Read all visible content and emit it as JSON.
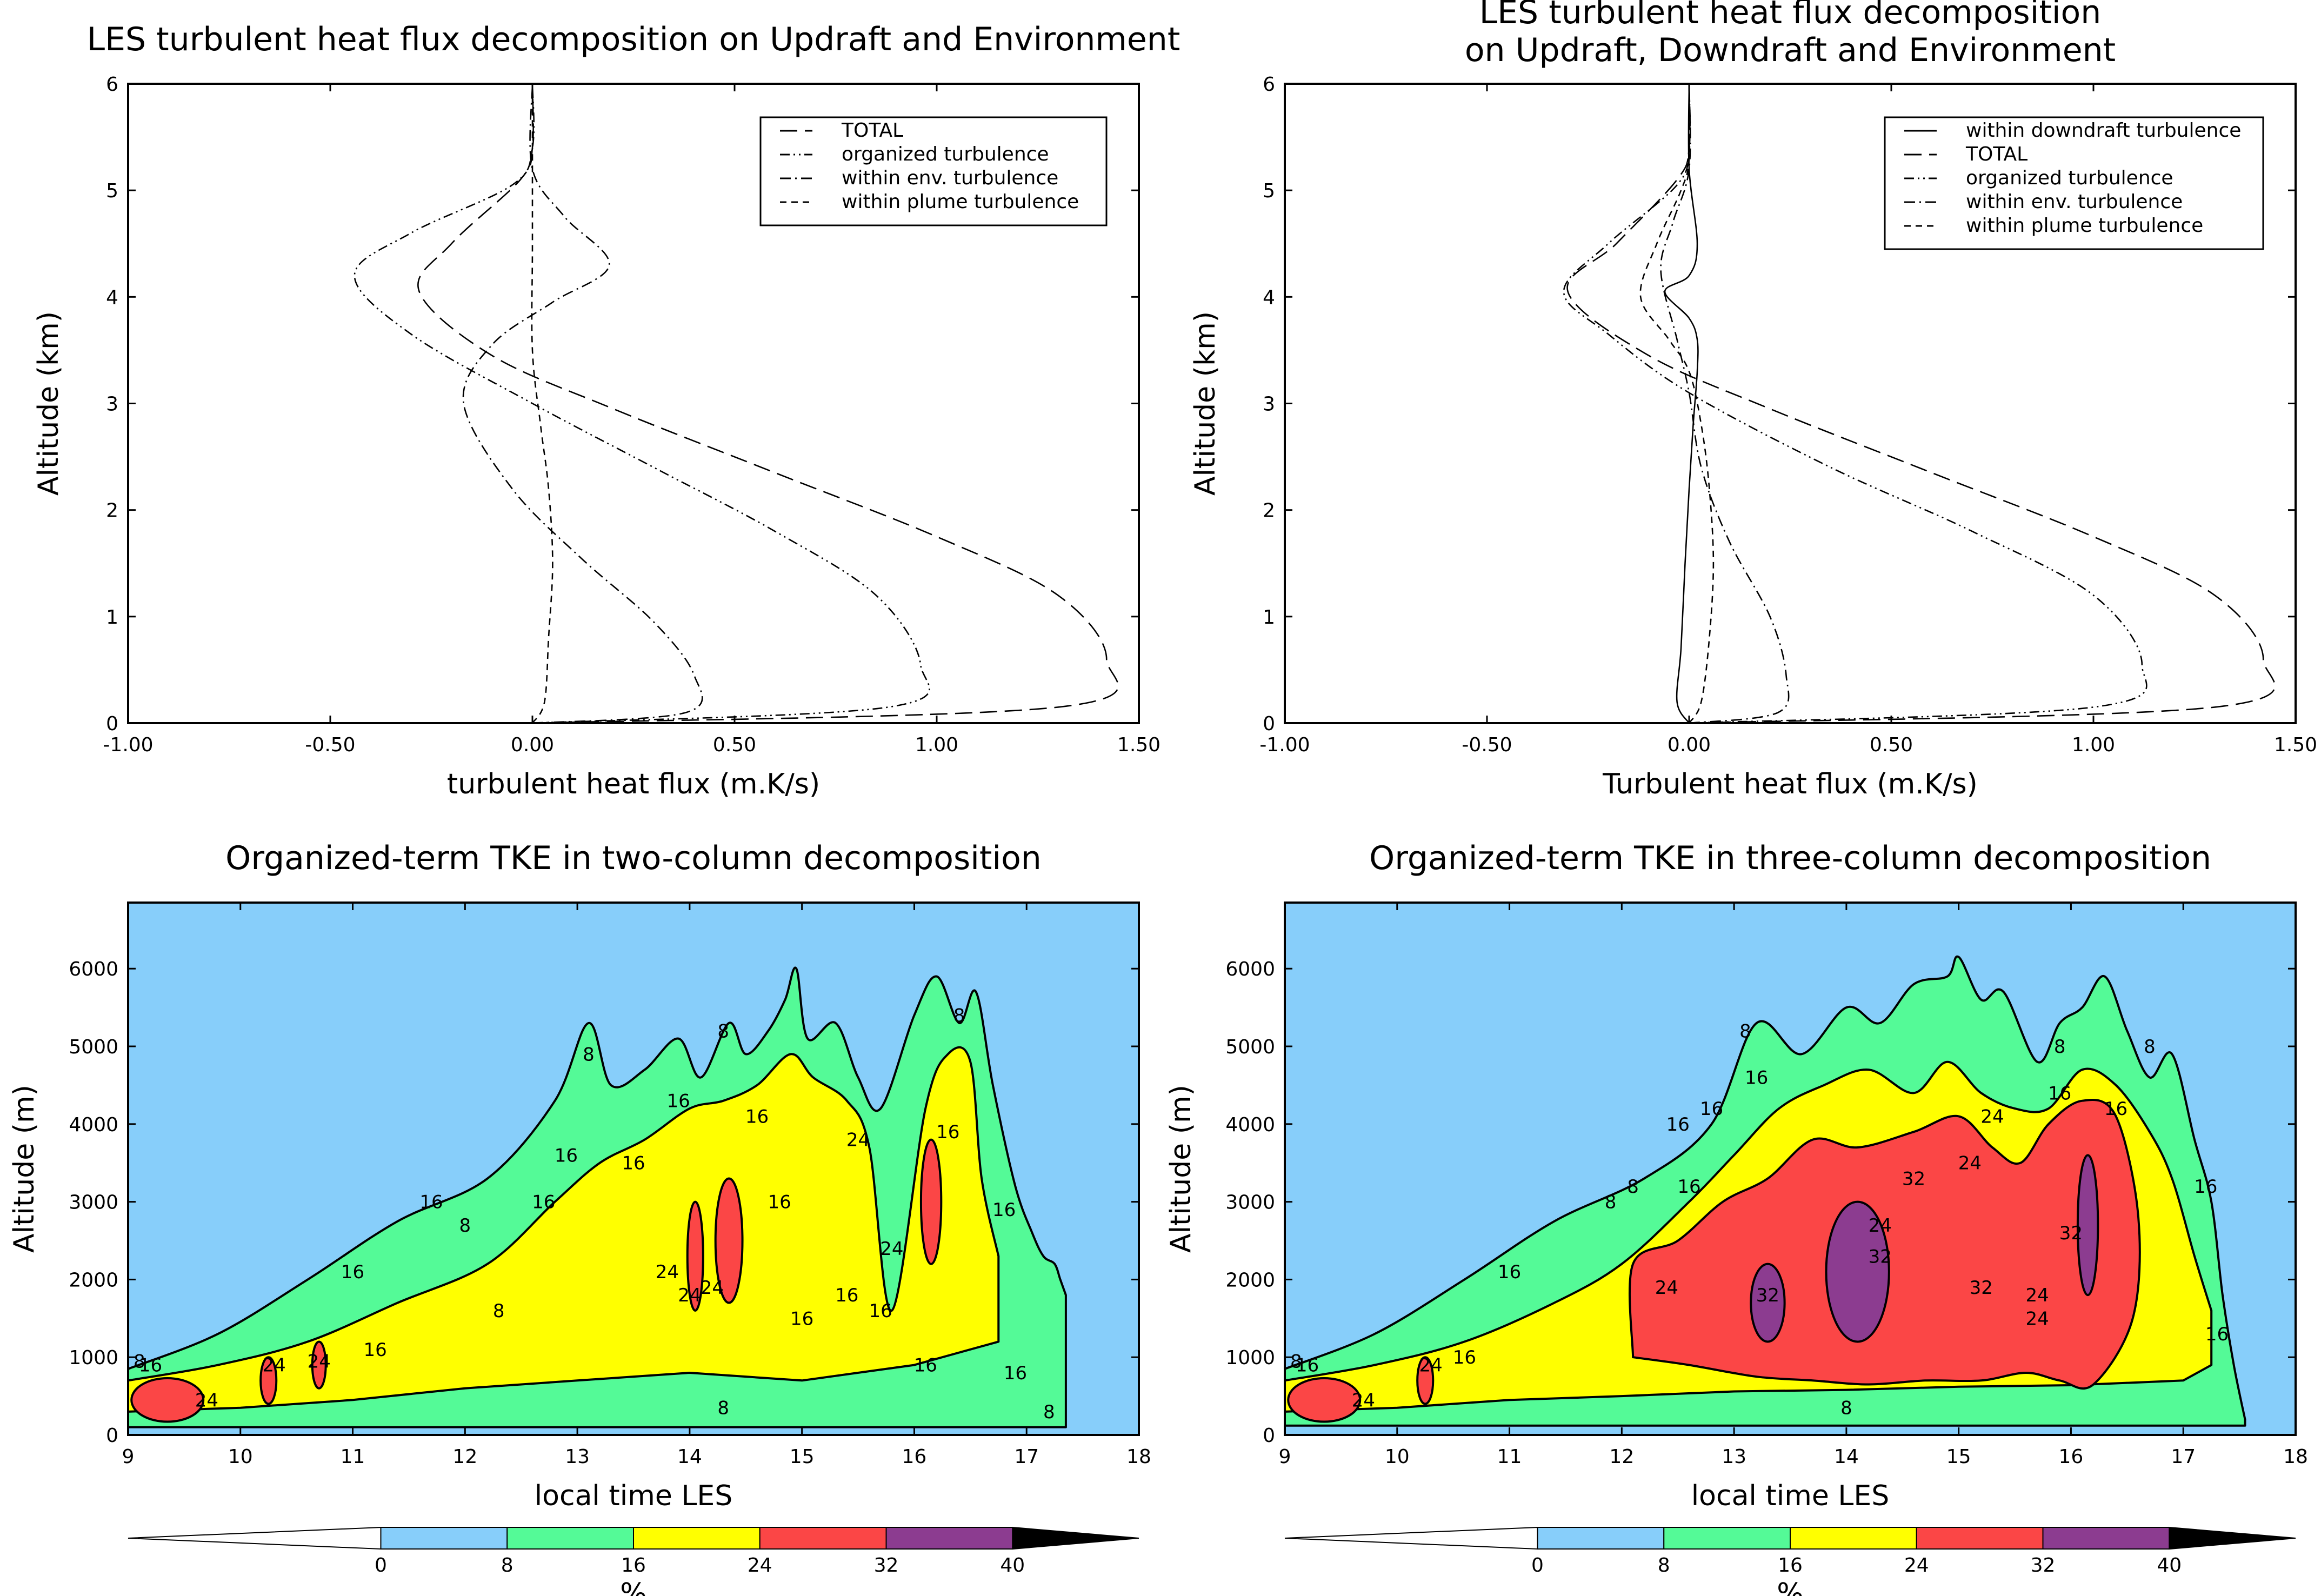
{
  "chart_data": [
    {
      "id": "panel_a",
      "type": "line",
      "title": [
        "LES turbulent heat flux decomposition on Updraft and Environment"
      ],
      "xlabel": "turbulent heat flux (m.K/s)",
      "ylabel": "Altitude (km)",
      "xlim": [
        -1.0,
        1.5
      ],
      "ylim": [
        0,
        6
      ],
      "xticks": [
        -1.0,
        -0.5,
        0.0,
        0.5,
        1.0,
        1.5
      ],
      "xtick_labels": [
        "-1.00",
        "-0.50",
        "0.00",
        "0.50",
        "1.00",
        "1.50"
      ],
      "yticks": [
        0,
        1,
        2,
        3,
        4,
        5,
        6
      ],
      "ytick_labels": [
        "0",
        "1",
        "2",
        "3",
        "4",
        "5",
        "6"
      ],
      "legend_position": "top-right",
      "series": [
        {
          "name": "TOTAL",
          "dash": "long",
          "x": [
            0.0,
            1.3,
            1.42,
            1.3,
            1.0,
            0.6,
            0.2,
            -0.1,
            -0.28,
            -0.2,
            -0.03,
            0.0,
            0.0
          ],
          "y": [
            0.0,
            0.15,
            0.6,
            1.2,
            1.75,
            2.35,
            2.95,
            3.45,
            4.05,
            4.5,
            5.1,
            5.4,
            6.0
          ]
        },
        {
          "name": "organized turbulence",
          "dash": "dot-dot-dash",
          "x": [
            0.0,
            0.88,
            0.96,
            0.85,
            0.6,
            0.3,
            0.0,
            -0.3,
            -0.44,
            -0.3,
            -0.05,
            0.0,
            0.0
          ],
          "y": [
            0.0,
            0.15,
            0.55,
            1.2,
            1.8,
            2.4,
            3.0,
            3.65,
            4.2,
            4.6,
            5.05,
            5.4,
            6.0
          ]
        },
        {
          "name": "within env. turbulence",
          "dash": "dash-dot",
          "x": [
            0.0,
            0.38,
            0.4,
            0.3,
            0.12,
            -0.05,
            -0.17,
            -0.1,
            0.05,
            0.19,
            0.08,
            0.0,
            0.0
          ],
          "y": [
            0.0,
            0.1,
            0.45,
            0.95,
            1.55,
            2.2,
            3.0,
            3.55,
            3.95,
            4.3,
            4.75,
            5.2,
            6.0
          ]
        },
        {
          "name": "within plume turbulence",
          "dash": "short",
          "x": [
            0.0,
            0.03,
            0.04,
            0.05,
            0.04,
            0.02,
            0.0,
            0.0,
            0.0
          ],
          "y": [
            0.0,
            0.2,
            0.8,
            1.5,
            2.2,
            2.8,
            3.5,
            4.5,
            6.0
          ]
        }
      ]
    },
    {
      "id": "panel_b",
      "type": "line",
      "title": [
        "LES turbulent heat flux decomposition",
        "on Updraft, Downdraft and Environment"
      ],
      "xlabel": "Turbulent heat flux (m.K/s)",
      "ylabel": "Altitude (km)",
      "xlim": [
        -1.0,
        1.5
      ],
      "ylim": [
        0,
        6
      ],
      "xticks": [
        -1.0,
        -0.5,
        0.0,
        0.5,
        1.0,
        1.5
      ],
      "xtick_labels": [
        "-1.00",
        "-0.50",
        "0.00",
        "0.50",
        "1.00",
        "1.50"
      ],
      "yticks": [
        0,
        1,
        2,
        3,
        4,
        5,
        6
      ],
      "ytick_labels": [
        "0",
        "1",
        "2",
        "3",
        "4",
        "5",
        "6"
      ],
      "legend_position": "top-right",
      "series": [
        {
          "name": "within downdraft turbulence",
          "dash": "solid",
          "x": [
            0.0,
            -0.03,
            -0.02,
            -0.01,
            0.0,
            0.01,
            0.02,
            0.02,
            0.0,
            -0.06,
            0.0,
            0.02,
            0.0,
            0.0
          ],
          "y": [
            0.0,
            0.2,
            0.7,
            1.5,
            2.2,
            2.8,
            3.3,
            3.6,
            3.8,
            4.05,
            4.2,
            4.5,
            5.2,
            6.0
          ]
        },
        {
          "name": "TOTAL",
          "dash": "long",
          "x": [
            0.0,
            1.3,
            1.42,
            1.3,
            1.0,
            0.6,
            0.2,
            -0.1,
            -0.3,
            -0.18,
            -0.03,
            0.0,
            0.0
          ],
          "y": [
            0.0,
            0.15,
            0.6,
            1.2,
            1.75,
            2.35,
            2.95,
            3.45,
            4.05,
            4.5,
            5.1,
            5.4,
            6.0
          ]
        },
        {
          "name": "organized turbulence",
          "dash": "dot-dot-dash",
          "x": [
            0.0,
            1.0,
            1.12,
            1.0,
            0.7,
            0.35,
            0.0,
            -0.2,
            -0.31,
            -0.2,
            -0.03,
            0.0,
            0.0
          ],
          "y": [
            0.0,
            0.15,
            0.55,
            1.2,
            1.8,
            2.4,
            3.1,
            3.65,
            4.05,
            4.5,
            5.05,
            5.4,
            6.0
          ]
        },
        {
          "name": "within env. turbulence",
          "dash": "dash-dot",
          "x": [
            0.0,
            0.22,
            0.24,
            0.2,
            0.1,
            0.03,
            0.0,
            -0.03,
            -0.07,
            -0.04,
            0.0,
            0.0
          ],
          "y": [
            0.0,
            0.1,
            0.45,
            1.0,
            1.7,
            2.4,
            3.1,
            3.6,
            4.25,
            4.7,
            5.2,
            6.0
          ]
        },
        {
          "name": "within plume turbulence",
          "dash": "short",
          "x": [
            0.0,
            0.03,
            0.05,
            0.06,
            0.05,
            0.03,
            0.0,
            -0.05,
            -0.12,
            -0.08,
            -0.02,
            0.0,
            0.0
          ],
          "y": [
            0.0,
            0.2,
            0.8,
            1.5,
            2.2,
            2.8,
            3.3,
            3.6,
            4.0,
            4.5,
            5.0,
            5.3,
            6.0
          ]
        }
      ]
    },
    {
      "id": "panel_c",
      "type": "heatmap",
      "title": [
        "Organized-term TKE in two-column decomposition"
      ],
      "xlabel": "local time LES",
      "ylabel": "Altitude (m)",
      "xlim": [
        9,
        18
      ],
      "ylim": [
        0,
        6850
      ],
      "xticks": [
        9,
        10,
        11,
        12,
        13,
        14,
        15,
        16,
        17,
        18
      ],
      "xtick_labels": [
        "9",
        "10",
        "11",
        "12",
        "13",
        "14",
        "15",
        "16",
        "17",
        "18"
      ],
      "yticks": [
        0,
        1000,
        2000,
        3000,
        4000,
        5000,
        6000
      ],
      "ytick_labels": [
        "0",
        "1000",
        "2000",
        "3000",
        "4000",
        "5000",
        "6000"
      ],
      "levels": [
        {
          "level": 8,
          "t": [
            9.0,
            9.8,
            10.6,
            11.4,
            12.2,
            12.8,
            13.1,
            13.3,
            13.6,
            13.9,
            14.1,
            14.35,
            14.5,
            14.7,
            14.85,
            14.95,
            15.05,
            15.3,
            15.5,
            15.7,
            16.0,
            16.2,
            16.4,
            16.55,
            16.7,
            16.9,
            17.05,
            17.15,
            17.25,
            17.3,
            17.35
          ],
          "top": [
            850,
            1300,
            2000,
            2750,
            3300,
            4300,
            5300,
            4500,
            4700,
            5100,
            4600,
            5300,
            4900,
            5200,
            5600,
            6000,
            5100,
            5300,
            4600,
            4200,
            5400,
            5900,
            5300,
            5700,
            4500,
            3200,
            2600,
            2300,
            2200,
            2000,
            1800
          ],
          "bottom": 100
        },
        {
          "level": 16,
          "t": [
            9.0,
            9.8,
            10.6,
            11.4,
            12.2,
            12.8,
            13.2,
            13.6,
            14.0,
            14.3,
            14.6,
            14.9,
            15.1,
            15.4,
            15.6,
            15.8,
            16.1,
            16.3,
            16.5,
            16.6,
            16.75
          ],
          "top": [
            700,
            900,
            1200,
            1700,
            2200,
            3000,
            3500,
            3800,
            4200,
            4300,
            4500,
            4900,
            4600,
            4300,
            3700,
            1600,
            4200,
            4900,
            4800,
            3300,
            2300
          ],
          "bottom_t": [
            9.0,
            10.0,
            11.0,
            12.0,
            13.0,
            14.0,
            15.0,
            16.0,
            16.75
          ],
          "bottom": [
            300,
            350,
            450,
            600,
            700,
            800,
            700,
            900,
            1200
          ]
        },
        {
          "level": 24,
          "blobs": [
            {
              "cx": 9.35,
              "cy": 450,
              "rx": 0.32,
              "ry": 280
            },
            {
              "cx": 10.25,
              "cy": 700,
              "rx": 0.07,
              "ry": 300
            },
            {
              "cx": 10.7,
              "cy": 900,
              "rx": 0.06,
              "ry": 300
            },
            {
              "cx": 14.35,
              "cy": 2500,
              "rx": 0.12,
              "ry": 800
            },
            {
              "cx": 14.05,
              "cy": 2300,
              "rx": 0.07,
              "ry": 700
            },
            {
              "cx": 16.15,
              "cy": 3000,
              "rx": 0.09,
              "ry": 800
            }
          ]
        }
      ],
      "contour_labels": [
        "16",
        "8",
        "24",
        "24",
        "24",
        "16",
        "16",
        "8",
        "16",
        "8",
        "16",
        "8",
        "16",
        "16",
        "24",
        "24",
        "24",
        "16",
        "8",
        "16",
        "16",
        "16",
        "16",
        "24",
        "24",
        "16",
        "16",
        "8",
        "8",
        "16",
        "8",
        "16",
        "16"
      ]
    },
    {
      "id": "panel_d",
      "type": "heatmap",
      "title": [
        "Organized-term TKE in three-column decomposition"
      ],
      "xlabel": "local time LES",
      "ylabel": "Altitude (m)",
      "xlim": [
        9,
        18
      ],
      "ylim": [
        0,
        6850
      ],
      "xticks": [
        9,
        10,
        11,
        12,
        13,
        14,
        15,
        16,
        17,
        18
      ],
      "xtick_labels": [
        "9",
        "10",
        "11",
        "12",
        "13",
        "14",
        "15",
        "16",
        "17",
        "18"
      ],
      "yticks": [
        0,
        1000,
        2000,
        3000,
        4000,
        5000,
        6000
      ],
      "ytick_labels": [
        "0",
        "1000",
        "2000",
        "3000",
        "4000",
        "5000",
        "6000"
      ],
      "levels": [
        {
          "level": 8,
          "t": [
            9.0,
            9.8,
            10.6,
            11.4,
            12.2,
            12.8,
            13.2,
            13.6,
            14.0,
            14.3,
            14.6,
            14.9,
            15.0,
            15.2,
            15.4,
            15.7,
            15.9,
            16.1,
            16.3,
            16.5,
            16.7,
            16.9,
            17.1,
            17.25,
            17.35,
            17.45,
            17.55
          ],
          "top": [
            850,
            1300,
            2000,
            2750,
            3300,
            4000,
            5300,
            4900,
            5500,
            5300,
            5800,
            5900,
            6150,
            5600,
            5700,
            4800,
            5300,
            5500,
            5900,
            5200,
            4600,
            4900,
            3800,
            3000,
            1800,
            900,
            200
          ],
          "bottom": 120
        },
        {
          "level": 16,
          "t": [
            9.0,
            9.8,
            10.6,
            11.4,
            12.0,
            12.6,
            13.0,
            13.4,
            13.8,
            14.2,
            14.6,
            14.9,
            15.2,
            15.5,
            15.8,
            16.1,
            16.4,
            16.7,
            16.9,
            17.1,
            17.25
          ],
          "top": [
            700,
            900,
            1200,
            1700,
            2200,
            3000,
            3600,
            4200,
            4500,
            4700,
            4400,
            4800,
            4400,
            4200,
            4200,
            4700,
            4500,
            3900,
            3300,
            2300,
            1600
          ],
          "bottom_t": [
            9.0,
            10.0,
            11.0,
            12.0,
            13.0,
            14.0,
            15.0,
            16.0,
            17.0,
            17.25
          ],
          "bottom": [
            300,
            350,
            450,
            500,
            560,
            580,
            620,
            640,
            700,
            900
          ]
        },
        {
          "level": 24,
          "blob_path": [
            [
              12.1,
              1000
            ],
            [
              12.1,
              2200
            ],
            [
              12.5,
              2500
            ],
            [
              12.9,
              3000
            ],
            [
              13.3,
              3300
            ],
            [
              13.7,
              3800
            ],
            [
              14.1,
              3700
            ],
            [
              14.6,
              3900
            ],
            [
              15.0,
              4100
            ],
            [
              15.3,
              3700
            ],
            [
              15.55,
              3500
            ],
            [
              15.8,
              4000
            ],
            [
              16.1,
              4300
            ],
            [
              16.4,
              4100
            ],
            [
              16.6,
              2800
            ],
            [
              16.55,
              1500
            ],
            [
              16.2,
              650
            ],
            [
              15.9,
              700
            ],
            [
              15.6,
              800
            ],
            [
              15.2,
              700
            ],
            [
              14.7,
              700
            ],
            [
              14.2,
              650
            ],
            [
              13.7,
              700
            ],
            [
              13.2,
              750
            ],
            [
              12.6,
              900
            ],
            [
              12.1,
              1000
            ]
          ],
          "extra_blobs": [
            {
              "cx": 9.35,
              "cy": 450,
              "rx": 0.32,
              "ry": 280
            },
            {
              "cx": 10.25,
              "cy": 700,
              "rx": 0.07,
              "ry": 300
            }
          ]
        },
        {
          "level": 32,
          "blobs": [
            {
              "cx": 13.3,
              "cy": 1700,
              "rx": 0.15,
              "ry": 500
            },
            {
              "cx": 14.1,
              "cy": 2100,
              "rx": 0.28,
              "ry": 900
            },
            {
              "cx": 16.15,
              "cy": 2700,
              "rx": 0.09,
              "ry": 900
            }
          ]
        }
      ],
      "contour_labels": [
        "16",
        "8",
        "24",
        "24",
        "16",
        "16",
        "8",
        "8",
        "16",
        "16",
        "16",
        "24",
        "16",
        "8",
        "32",
        "32",
        "32",
        "24",
        "24",
        "32",
        "24",
        "24",
        "16",
        "8",
        "16",
        "8",
        "32",
        "16",
        "16",
        "8",
        "24"
      ]
    }
  ],
  "colorbar": {
    "label": "%",
    "tick_labels": [
      "0",
      "8",
      "16",
      "24",
      "32",
      "40"
    ],
    "ticks": [
      0,
      8,
      16,
      24,
      32,
      40
    ],
    "range": [
      -16,
      48
    ],
    "colors": {
      "below": "#ffffff",
      "0-8": "#87cefa",
      "8-16": "#54fa97",
      "16-24": "#ffff00",
      "24-32": "#fb4646",
      "32-40": "#8c3c90",
      "above": "#000000"
    }
  }
}
